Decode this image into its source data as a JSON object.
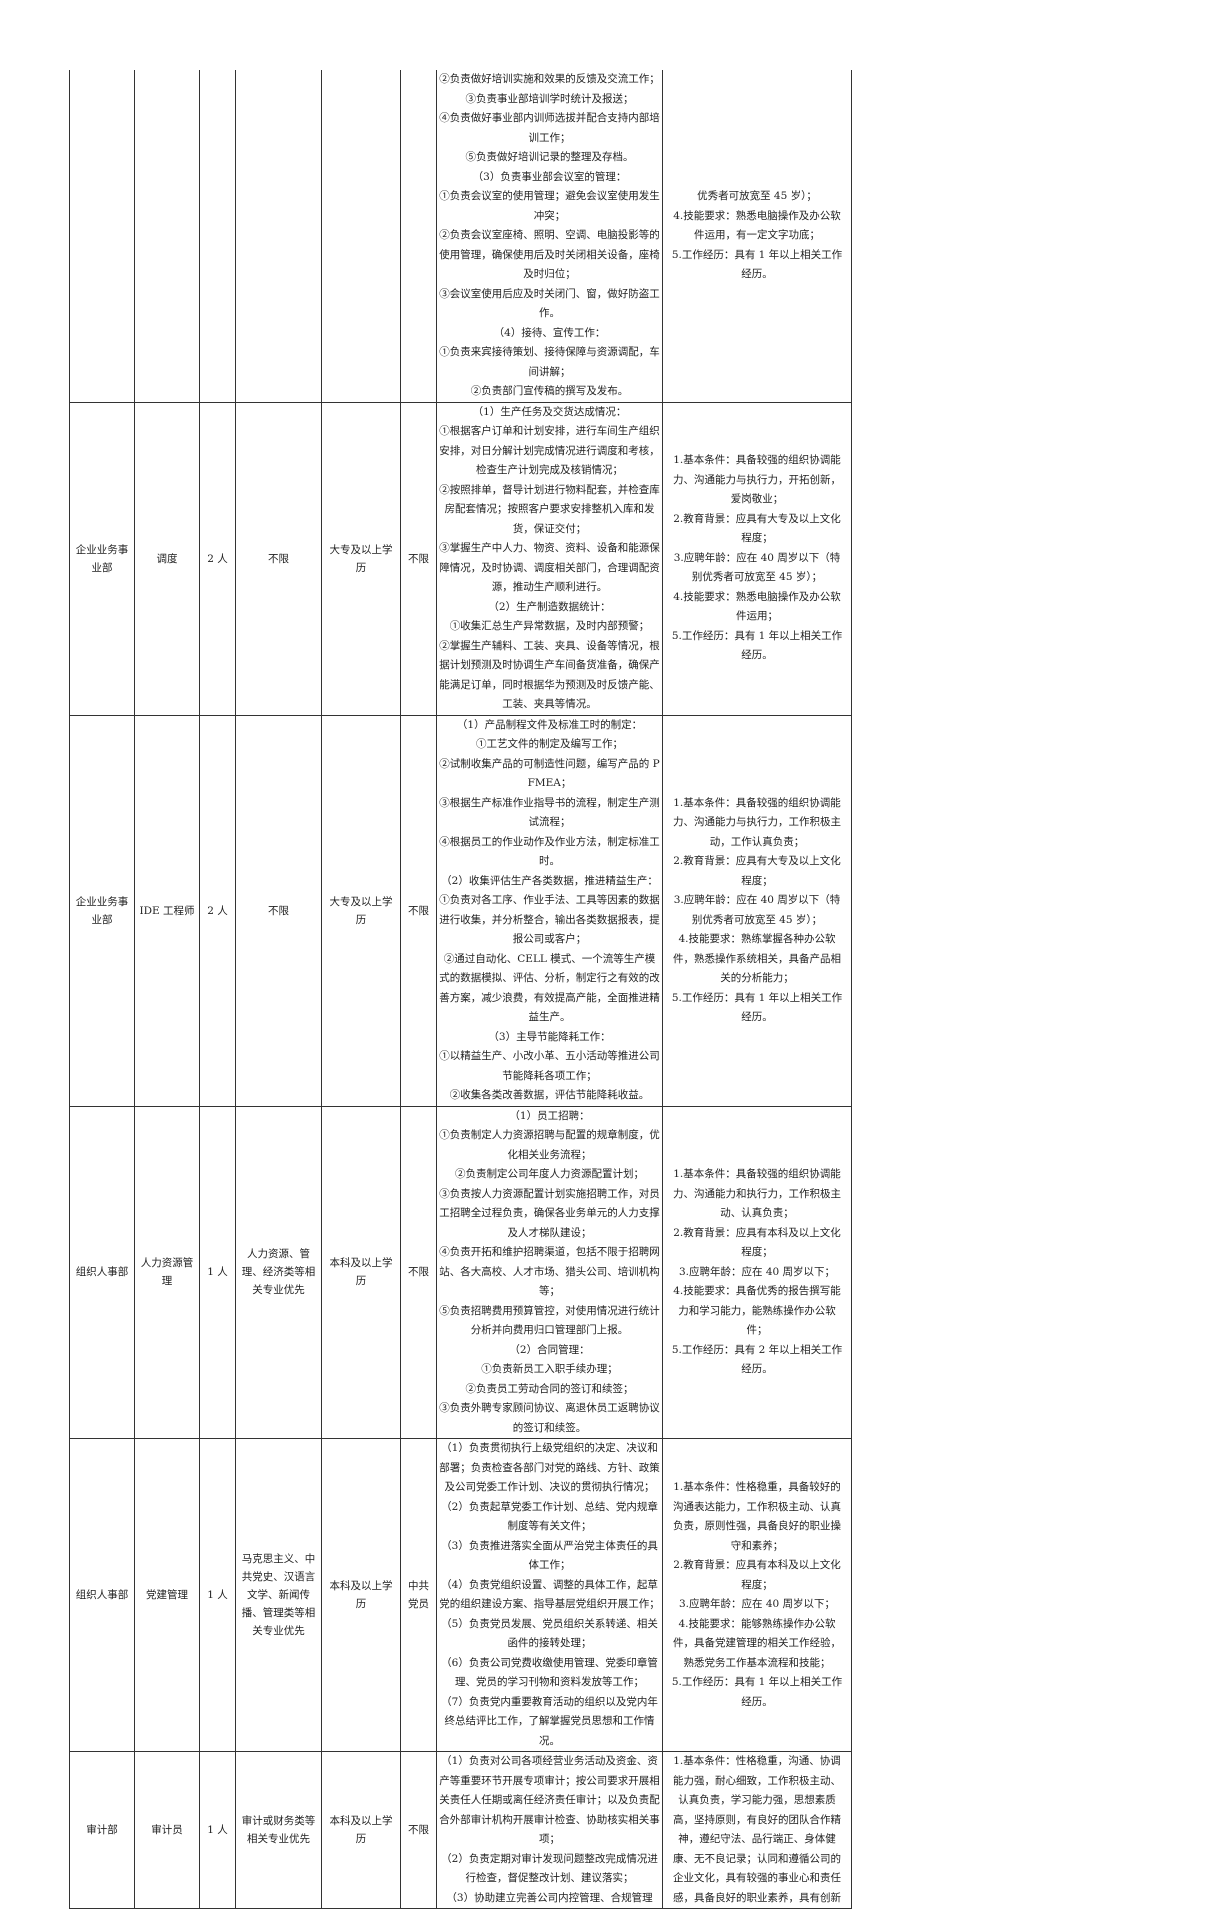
{
  "rows": [
    {
      "department": "",
      "position": "",
      "count": "",
      "major": "",
      "education": "",
      "politics": "",
      "duties": [
        "②负责做好培训实施和效果的反馈及交流工作；",
        "③负责事业部培训学时统计及报送；",
        "④负责做好事业部内训师选拔并配合支持内部培训工作；",
        "⑤负责做好培训记录的整理及存档。",
        "（3）负责事业部会议室的管理：",
        "①负责会议室的使用管理；避免会议室使用发生冲突；",
        "②负责会议室座椅、照明、空调、电脑投影等的使用管理，确保使用后及时关闭相关设备，座椅及时归位；",
        "③会议室使用后应及时关闭门、窗，做好防盗工作。",
        "（4）接待、宣传工作：",
        "①负责来宾接待策划、接待保障与资源调配，车间讲解；",
        "②负责部门宣传稿的撰写及发布。"
      ],
      "requirements": [
        "优秀者可放宽至 45 岁）；",
        "4.技能要求：熟悉电脑操作及办公软件运用，有一定文字功底；",
        "5.工作经历：具有 1 年以上相关工作经历。"
      ]
    },
    {
      "department": "企业业务事业部",
      "position": "调度",
      "count": "2 人",
      "major": "不限",
      "education": "大专及以上学历",
      "politics": "不限",
      "duties": [
        "（1）生产任务及交货达成情况：",
        "①根据客户订单和计划安排，进行车间生产组织安排，对日分解计划完成情况进行调度和考核，检查生产计划完成及核销情况；",
        "②按照排单，督导计划进行物料配套，并检查库房配套情况；按照客户要求安排整机入库和发货，保证交付；",
        "③掌握生产中人力、物资、资料、设备和能源保障情况，及时协调、调度相关部门，合理调配资源，推动生产顺利进行。",
        "（2）生产制造数据统计：",
        "①收集汇总生产异常数据，及时内部预警；",
        "②掌握生产辅料、工装、夹具、设备等情况，根据计划预测及时协调生产车间备货准备，确保产能满足订单，同时根据华为预测及时反馈产能、工装、夹具等情况。"
      ],
      "requirements": [
        "1.基本条件：具备较强的组织协调能力、沟通能力与执行力，开拓创新，爱岗敬业；",
        "2.教育背景：应具有大专及以上文化程度；",
        "3.应聘年龄：应在 40 周岁以下（特别优秀者可放宽至 45 岁）；",
        "4.技能要求：熟悉电脑操作及办公软件运用；",
        "5.工作经历：具有 1 年以上相关工作经历。"
      ]
    },
    {
      "department": "企业业务事业部",
      "position": "IDE 工程师",
      "count": "2 人",
      "major": "不限",
      "education": "大专及以上学历",
      "politics": "不限",
      "duties": [
        "（1）产品制程文件及标准工时的制定：",
        "①工艺文件的制定及编写工作；",
        "②试制收集产品的可制造性问题，编写产品的 PFMEA；",
        "③根据生产标准作业指导书的流程，制定生产测试流程；",
        "④根据员工的作业动作及作业方法，制定标准工时。",
        "（2）收集评估生产各类数据，推进精益生产：",
        "①负责对各工序、作业手法、工具等因素的数据进行收集，并分析整合，输出各类数据报表，提报公司或客户；",
        "②通过自动化、CELL 模式、一个流等生产模式的数据模拟、评估、分析，制定行之有效的改善方案，减少浪费，有效提高产能，全面推进精益生产。",
        "（3）主导节能降耗工作：",
        "①以精益生产、小改小革、五小活动等推进公司节能降耗各项工作；",
        "②收集各类改善数据，评估节能降耗收益。"
      ],
      "requirements": [
        "1.基本条件：具备较强的组织协调能力、沟通能力与执行力，工作积极主动，工作认真负责；",
        "2.教育背景：应具有大专及以上文化程度；",
        "3.应聘年龄：应在 40 周岁以下（特别优秀者可放宽至 45 岁）；",
        "4.技能要求：熟练掌握各种办公软件，熟悉操作系统相关，具备产品相关的分析能力；",
        "5.工作经历：具有 1 年以上相关工作经历。"
      ]
    },
    {
      "department": "组织人事部",
      "position": "人力资源管理",
      "count": "1 人",
      "major": "人力资源、管理、经济类等相关专业优先",
      "education": "本科及以上学历",
      "politics": "不限",
      "duties": [
        "（1）员工招聘：",
        "①负责制定人力资源招聘与配置的规章制度，优化相关业务流程；",
        "②负责制定公司年度人力资源配置计划；",
        "③负责按人力资源配置计划实施招聘工作，对员工招聘全过程负责，确保各业务单元的人力支撑及人才梯队建设；",
        "④负责开拓和维护招聘渠道，包括不限于招聘网站、各大高校、人才市场、猎头公司、培训机构等；",
        "⑤负责招聘费用预算管控，对使用情况进行统计分析并向费用归口管理部门上报。",
        "（2）合同管理：",
        "①负责新员工入职手续办理；",
        "②负责员工劳动合同的签订和续签；",
        "③负责外聘专家顾问协议、离退休员工返聘协议的签订和续签。"
      ],
      "requirements": [
        "1.基本条件：具备较强的组织协调能力、沟通能力和执行力，工作积极主动、认真负责；",
        "2.教育背景：应具有本科及以上文化程度；",
        "3.应聘年龄：应在 40 周岁以下；",
        "4.技能要求：具备优秀的报告撰写能力和学习能力，能熟练操作办公软件；",
        "5.工作经历：具有 2 年以上相关工作经历。"
      ]
    },
    {
      "department": "组织人事部",
      "position": "党建管理",
      "count": "1 人",
      "major": "马克思主义、中共党史、汉语言文学、新闻传播、管理类等相关专业优先",
      "education": "本科及以上学历",
      "politics": "中共党员",
      "duties": [
        "（1）负责贯彻执行上级党组织的决定、决议和部署；负责检查各部门对党的路线、方针、政策及公司党委工作计划、决议的贯彻执行情况；",
        "（2）负责起草党委工作计划、总结、党内规章制度等有关文件；",
        "（3）负责推进落实全面从严治党主体责任的具体工作；",
        "（4）负责党组织设置、调整的具体工作，起草党的组织建设方案、指导基层党组织开展工作；",
        "（5）负责党员发展、党员组织关系转递、相关函件的接转处理；",
        "（6）负责公司党费收缴使用管理、党委印章管理、党员的学习刊物和资料发放等工作；",
        "（7）负责党内重要教育活动的组织以及党内年终总结评比工作，了解掌握党员思想和工作情况。"
      ],
      "requirements": [
        "1.基本条件：性格稳重，具备较好的沟通表达能力，工作积极主动、认真负责，原则性强，具备良好的职业操守和素养；",
        "2.教育背景：应具有本科及以上文化程度；",
        "3.应聘年龄：应在 40 周岁以下；",
        "4.技能要求：能够熟练操作办公软件，具备党建管理的相关工作经验，熟悉党务工作基本流程和技能；",
        "5.工作经历：具有 1 年以上相关工作经历。"
      ]
    },
    {
      "department": "审计部",
      "position": "审计员",
      "count": "1 人",
      "major": "审计或财务类等相关专业优先",
      "education": "本科及以上学历",
      "politics": "不限",
      "duties": [
        "（1）负责对公司各项经营业务活动及资金、资产等重要环节开展专项审计；按公司要求开展相关责任人任期或离任经济责任审计；以及负责配合外部审计机构开展审计检查、协助核实相关事项；",
        "（2）负责定期对审计发现问题整改完成情况进行检查，督促整改计划、建议落实；",
        "（3）协助建立完善公司内控管理、合规管理"
      ],
      "requirements": [
        "1.基本条件：性格稳重，沟通、协调能力强，耐心细致，工作积极主动、认真负责，学习能力强，思想素质高，坚持原则，有良好的团队合作精神，遵纪守法、品行端正、身体健康、无不良记录；认同和遵循公司的企业文化，具有较强的事业心和责任感，具备良好的职业素养，具有创新"
      ]
    }
  ]
}
